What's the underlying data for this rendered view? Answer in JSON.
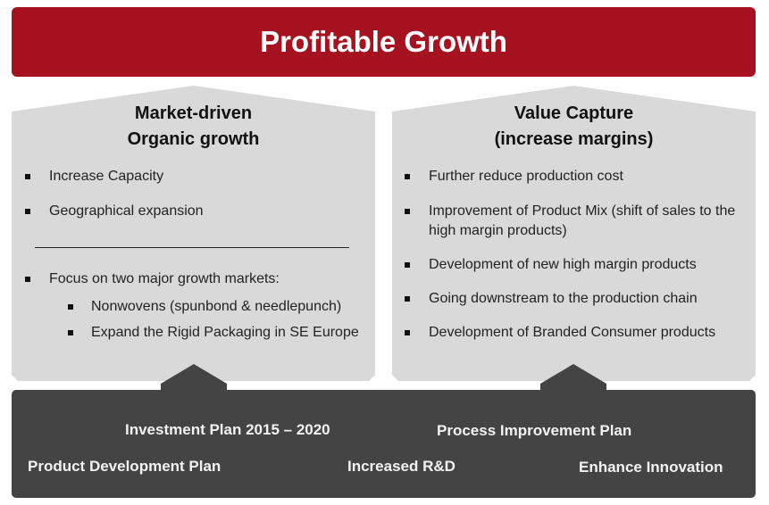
{
  "banner": {
    "title": "Profitable Growth"
  },
  "left_pillar": {
    "title_line1": "Market-driven",
    "title_line2": "Organic growth",
    "items_top": [
      "Increase Capacity",
      "Geographical expansion"
    ],
    "focus_item": "Focus on two major growth markets:",
    "sub_items": [
      "Nonwovens (spunbond & needlepunch)",
      "Expand the Rigid Packaging in SE Europe"
    ]
  },
  "right_pillar": {
    "title_line1": "Value Capture",
    "title_line2": "(increase margins)",
    "items": [
      "Further reduce production cost",
      "Improvement of Product Mix (shift of sales to the high margin products)",
      "Development of new high margin products",
      "Going downstream to the production chain",
      "Development of Branded Consumer products"
    ]
  },
  "foundation": {
    "investment_plan": "Investment Plan 2015 – 2020",
    "process_plan": "Process Improvement Plan",
    "product_plan": "Product Development  Plan",
    "rnd": "Increased R&D",
    "innovation": "Enhance Innovation"
  },
  "colors": {
    "banner": "#a6121f",
    "pillar_fill": "#d9d9d9",
    "foundation": "#444444"
  }
}
